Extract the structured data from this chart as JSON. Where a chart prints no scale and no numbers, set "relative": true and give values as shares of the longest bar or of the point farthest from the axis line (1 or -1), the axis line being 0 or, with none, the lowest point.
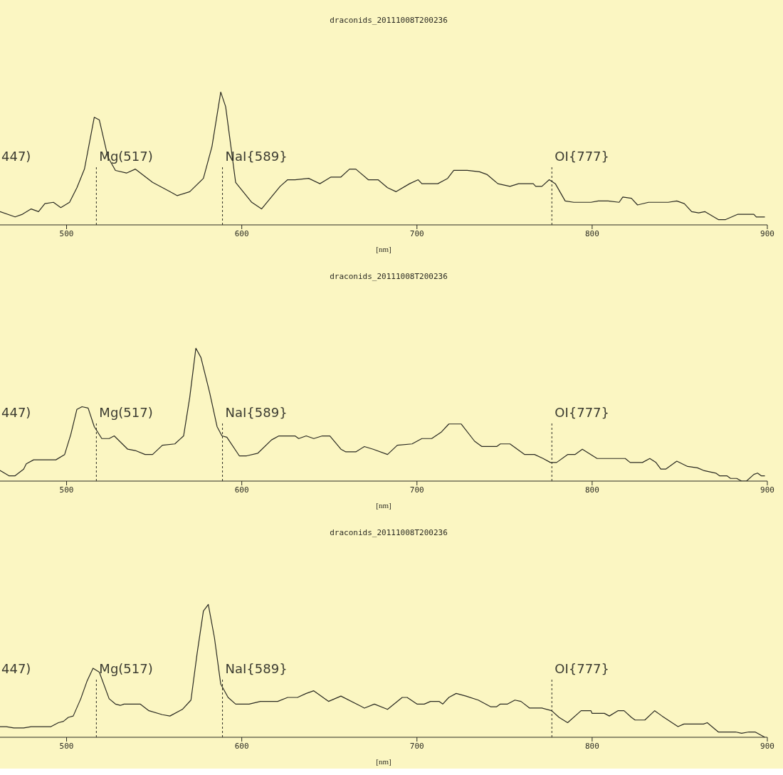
{
  "chart_data": [
    {
      "type": "line",
      "title": "draconids_20111008T200236",
      "xlabel": "[nm]",
      "relative": true,
      "xlim": [
        462,
        900
      ],
      "xticks": [
        500,
        600,
        700,
        800,
        900
      ],
      "color": "#2a2a22",
      "annotations": [
        "447)"
      ],
      "ref_lines": [
        {
          "axis": "x",
          "value": 517,
          "label": "Mg(517)",
          "line_style": "dashed"
        },
        {
          "axis": "x",
          "value": 589,
          "label": "NaI{589}",
          "line_style": "dashed"
        },
        {
          "axis": "x",
          "value": 777,
          "label": "OI{777}",
          "line_style": "dashed"
        }
      ],
      "x": [
        462,
        470.6,
        474.8,
        479.8,
        484,
        487.6,
        492.5,
        496.7,
        501.7,
        505.9,
        510.2,
        515.8,
        518.7,
        523.6,
        527.9,
        534.2,
        539.2,
        549.1,
        559,
        563.2,
        570.3,
        578.1,
        583,
        588,
        590.8,
        596.5,
        605.7,
        611.3,
        621.9,
        626.2,
        630.4,
        638.2,
        644.6,
        650.9,
        656.6,
        661.5,
        665.1,
        672.2,
        677.8,
        683.2,
        688.1,
        695.8,
        700.7,
        702.8,
        711.9,
        717.5,
        721,
        728.7,
        735.7,
        739.9,
        746.2,
        753.1,
        758,
        766.4,
        767.8,
        771.3,
        775.5,
        779,
        784.6,
        789.5,
        799.3,
        803.5,
        809.1,
        815.4,
        817.5,
        822.4,
        825.9,
        832.2,
        843.4,
        848.3,
        852.6,
        856.8,
        860.8,
        864.3,
        872,
        876.2,
        883.2,
        892.3,
        893.7,
        898.6
      ],
      "values": [
        0.1,
        0.06,
        0.08,
        0.12,
        0.1,
        0.16,
        0.17,
        0.13,
        0.17,
        0.28,
        0.42,
        0.81,
        0.79,
        0.51,
        0.41,
        0.39,
        0.42,
        0.32,
        0.25,
        0.22,
        0.25,
        0.35,
        0.59,
        1,
        0.89,
        0.32,
        0.17,
        0.12,
        0.29,
        0.34,
        0.34,
        0.35,
        0.31,
        0.36,
        0.36,
        0.42,
        0.42,
        0.34,
        0.34,
        0.28,
        0.25,
        0.31,
        0.34,
        0.31,
        0.31,
        0.35,
        0.41,
        0.41,
        0.4,
        0.38,
        0.31,
        0.29,
        0.31,
        0.31,
        0.29,
        0.29,
        0.34,
        0.31,
        0.18,
        0.17,
        0.17,
        0.18,
        0.18,
        0.17,
        0.21,
        0.2,
        0.15,
        0.17,
        0.17,
        0.18,
        0.16,
        0.1,
        0.09,
        0.1,
        0.04,
        0.04,
        0.08,
        0.08,
        0.06,
        0.06
      ]
    },
    {
      "type": "line",
      "title": "draconids_20111008T200236",
      "xlabel": "[nm]",
      "relative": true,
      "xlim": [
        462,
        900
      ],
      "xticks": [
        500,
        600,
        700,
        800,
        900
      ],
      "color": "#2a2a22",
      "annotations": [
        "447)"
      ],
      "ref_lines": [
        {
          "axis": "x",
          "value": 517,
          "label": "Mg(517)",
          "line_style": "dashed"
        },
        {
          "axis": "x",
          "value": 589,
          "label": "NaI{589}",
          "line_style": "dashed"
        },
        {
          "axis": "x",
          "value": 777,
          "label": "OI{777}",
          "line_style": "dashed"
        }
      ],
      "x": [
        462,
        467.1,
        470.6,
        475.5,
        477,
        481.2,
        493.9,
        498.9,
        502.4,
        505.9,
        508.8,
        512.3,
        515.8,
        520.1,
        524.3,
        527.2,
        534.9,
        539.2,
        544.8,
        549.1,
        554.7,
        561.8,
        566.8,
        570.3,
        573.8,
        576.7,
        581.6,
        585.9,
        588.7,
        591.5,
        598.6,
        602.8,
        609.2,
        617,
        621.2,
        630.4,
        632.5,
        636.8,
        641.1,
        646,
        650.3,
        656.6,
        659.4,
        665.1,
        670,
        675,
        683.2,
        688.8,
        697.2,
        702.8,
        708.4,
        714,
        718.2,
        725.2,
        732.9,
        737.1,
        745.5,
        747.6,
        753.1,
        761.5,
        767.1,
        772,
        776.2,
        779.7,
        786,
        790.2,
        794.4,
        802.8,
        818.9,
        821.7,
        828.7,
        832.9,
        836.4,
        839.2,
        842,
        848.3,
        854.5,
        860.1,
        863.6,
        870.6,
        872.7,
        876.9,
        879,
        882.5,
        885.3,
        888.1,
        892.3,
        894.4,
        896.5,
        898.6
      ],
      "values": [
        0.08,
        0.04,
        0.04,
        0.09,
        0.13,
        0.16,
        0.16,
        0.2,
        0.35,
        0.54,
        0.56,
        0.55,
        0.41,
        0.32,
        0.32,
        0.34,
        0.24,
        0.23,
        0.2,
        0.2,
        0.27,
        0.28,
        0.34,
        0.63,
        1,
        0.93,
        0.67,
        0.41,
        0.34,
        0.33,
        0.19,
        0.19,
        0.21,
        0.31,
        0.34,
        0.34,
        0.32,
        0.34,
        0.32,
        0.34,
        0.34,
        0.24,
        0.22,
        0.22,
        0.26,
        0.24,
        0.2,
        0.27,
        0.28,
        0.32,
        0.32,
        0.37,
        0.43,
        0.43,
        0.3,
        0.26,
        0.26,
        0.28,
        0.28,
        0.2,
        0.2,
        0.17,
        0.14,
        0.14,
        0.2,
        0.2,
        0.24,
        0.17,
        0.17,
        0.14,
        0.14,
        0.17,
        0.14,
        0.09,
        0.09,
        0.15,
        0.11,
        0.1,
        0.08,
        0.06,
        0.04,
        0.04,
        0.02,
        0.02,
        0,
        0,
        0.05,
        0.06,
        0.04,
        0.04
      ]
    },
    {
      "type": "line",
      "title": "draconids_20111008T200236",
      "xlabel": "[nm]",
      "relative": true,
      "xlim": [
        462,
        900
      ],
      "xticks": [
        500,
        600,
        700,
        800,
        900
      ],
      "color": "#2a2a22",
      "annotations": [
        "447)"
      ],
      "ref_lines": [
        {
          "axis": "x",
          "value": 517,
          "label": "Mg(517)",
          "line_style": "dashed"
        },
        {
          "axis": "x",
          "value": 589,
          "label": "NaI{589}",
          "line_style": "dashed"
        },
        {
          "axis": "x",
          "value": 777,
          "label": "OI{777}",
          "line_style": "dashed"
        }
      ],
      "x": [
        462,
        465.6,
        469.9,
        475.5,
        479.8,
        491.1,
        495.3,
        498.2,
        501,
        503.8,
        508.1,
        511.6,
        515.1,
        518.7,
        524.3,
        527.9,
        530.7,
        532.8,
        542,
        547,
        554.7,
        559,
        566.1,
        571,
        574.5,
        578.1,
        580.9,
        584.4,
        588,
        592.2,
        596.5,
        604.2,
        610.6,
        620.5,
        626.2,
        631.8,
        636.8,
        641.1,
        649.5,
        656.6,
        670,
        675.7,
        683.2,
        691.6,
        694.4,
        700,
        704.2,
        707.7,
        712.6,
        714.7,
        718.2,
        722.4,
        728,
        735,
        742,
        745.5,
        747.6,
        751.7,
        755.9,
        759.4,
        764.3,
        771.3,
        776.9,
        781.1,
        786,
        793.7,
        799.3,
        800,
        807,
        809.8,
        814.7,
        818.2,
        822.4,
        824.5,
        830.1,
        835.7,
        839.9,
        849,
        852.4,
        863.6,
        865.7,
        872,
        881.8,
        885.3,
        889.5,
        893,
        898.6
      ],
      "values": [
        0.08,
        0.08,
        0.07,
        0.07,
        0.08,
        0.08,
        0.11,
        0.12,
        0.15,
        0.16,
        0.29,
        0.42,
        0.52,
        0.49,
        0.29,
        0.25,
        0.24,
        0.25,
        0.25,
        0.2,
        0.17,
        0.16,
        0.21,
        0.28,
        0.63,
        0.95,
        1,
        0.75,
        0.4,
        0.3,
        0.25,
        0.25,
        0.27,
        0.27,
        0.3,
        0.3,
        0.33,
        0.35,
        0.27,
        0.31,
        0.22,
        0.25,
        0.21,
        0.3,
        0.3,
        0.25,
        0.25,
        0.27,
        0.27,
        0.25,
        0.3,
        0.33,
        0.31,
        0.28,
        0.23,
        0.23,
        0.25,
        0.25,
        0.28,
        0.27,
        0.22,
        0.22,
        0.2,
        0.15,
        0.11,
        0.2,
        0.2,
        0.18,
        0.18,
        0.16,
        0.2,
        0.2,
        0.15,
        0.13,
        0.13,
        0.2,
        0.16,
        0.08,
        0.1,
        0.1,
        0.11,
        0.04,
        0.04,
        0.03,
        0.04,
        0.04,
        0
      ]
    }
  ]
}
